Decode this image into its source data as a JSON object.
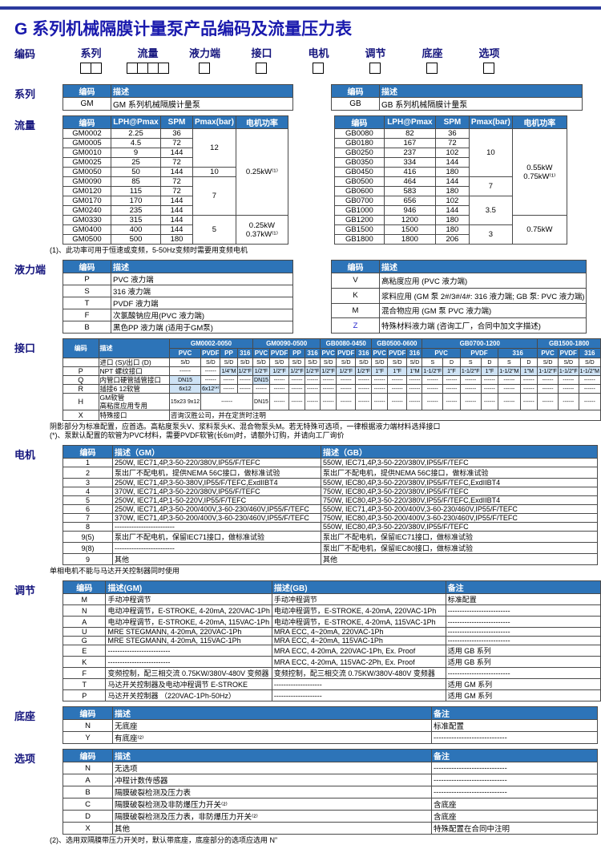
{
  "page": {
    "title": "G 系列机械隔膜计量泵产品编码及流量压力表"
  },
  "coding": {
    "label": "编码",
    "fields": [
      {
        "label": "系列",
        "boxes": 2
      },
      {
        "label": "流量",
        "boxes": 4
      },
      {
        "label": "液力端",
        "boxes": 1
      },
      {
        "label": "接口",
        "boxes": 1
      },
      {
        "label": "电机",
        "boxes": 1
      },
      {
        "label": "调节",
        "boxes": 1
      },
      {
        "label": "底座",
        "boxes": 1
      },
      {
        "label": "选项",
        "boxes": 1
      }
    ]
  },
  "series": {
    "label": "系列",
    "headers": [
      "编码",
      "描述"
    ],
    "left_rows": [
      [
        "GM",
        "GM 系列机械隔膜计量泵"
      ]
    ],
    "right_rows": [
      [
        "GB",
        "GB 系列机械隔膜计量泵"
      ]
    ]
  },
  "flow": {
    "label": "流量",
    "headers": [
      "编码",
      "LPH@Pmax",
      "SPM",
      "Pmax(bar)",
      "电机功率"
    ],
    "gm": {
      "rows": [
        [
          "GM0002",
          "2.25",
          "36"
        ],
        [
          "GM0005",
          "4.5",
          "72"
        ],
        [
          "GM0010",
          "9",
          "144"
        ],
        [
          "GM0025",
          "25",
          "72"
        ],
        [
          "GM0050",
          "50",
          "144"
        ],
        [
          "GM0090",
          "85",
          "72"
        ],
        [
          "GM0120",
          "115",
          "72"
        ],
        [
          "GM0170",
          "170",
          "144"
        ],
        [
          "GM0240",
          "235",
          "144"
        ],
        [
          "GM0330",
          "315",
          "144"
        ],
        [
          "GM0400",
          "400",
          "144"
        ],
        [
          "GM0500",
          "500",
          "180"
        ]
      ],
      "pmax": [
        {
          "value": "12",
          "span": 4
        },
        {
          "value": "10",
          "span": 1
        },
        {
          "value": "7",
          "span": 4
        },
        {
          "value": "5",
          "span": 3
        }
      ],
      "power": [
        {
          "value": "0.25kW⁽¹⁾",
          "span": 9
        },
        {
          "value": "0.25kW\n0.37kW⁽¹⁾",
          "span": 3
        }
      ]
    },
    "gb": {
      "rows": [
        [
          "GB0080",
          "82",
          "36"
        ],
        [
          "GB0180",
          "167",
          "72"
        ],
        [
          "GB0250",
          "237",
          "102"
        ],
        [
          "GB0350",
          "334",
          "144"
        ],
        [
          "GB0450",
          "416",
          "180"
        ],
        [
          "GB0500",
          "464",
          "144"
        ],
        [
          "GB0600",
          "583",
          "180"
        ],
        [
          "GB0700",
          "656",
          "102"
        ],
        [
          "GB1000",
          "946",
          "144"
        ],
        [
          "GB1200",
          "1200",
          "180"
        ],
        [
          "GB1500",
          "1500",
          "180"
        ],
        [
          "GB1800",
          "1800",
          "206"
        ]
      ],
      "pmax": [
        {
          "value": "10",
          "span": 5
        },
        {
          "value": "7",
          "span": 2
        },
        {
          "value": "3.5",
          "span": 3
        },
        {
          "value": "3",
          "span": 2
        }
      ],
      "power": [
        {
          "value": "0.55kW\n0.75kW⁽¹⁾",
          "span": 9
        },
        {
          "value": "0.75kW",
          "span": 3
        }
      ]
    },
    "note": "(1)、此功率可用于恒速或变频，5-50Hz变频时需要用变频电机"
  },
  "hydraulic": {
    "label": "液力端",
    "headers": [
      "编码",
      "描述"
    ],
    "left_rows": [
      [
        "P",
        "PVC 液力端"
      ],
      [
        "S",
        "316 液力端"
      ],
      [
        "T",
        "PVDF 液力端"
      ],
      [
        "F",
        "次氯酸钠应用(PVC 液力端)"
      ],
      [
        "B",
        "黑色PP 液力端 (适用于GM泵)"
      ]
    ],
    "right_rows": [
      [
        "V",
        "高粘度应用 (PVC 液力端)"
      ],
      [
        "K",
        "浆料应用 (GM 泵 2#/3#/4#: 316 液力端; GB 泵: PVC 液力端)"
      ],
      [
        "M",
        "混合物应用 (GM 泵 PVC 液力端)"
      ],
      [
        "Z",
        "特殊材料液力端 (咨询工厂，合同中加文字描述)"
      ]
    ],
    "blue_codes": [
      "Z"
    ]
  },
  "interface": {
    "label": "接口",
    "header": {
      "code": "编码",
      "desc": "描述"
    },
    "groups": [
      {
        "name": "GM0002-0050",
        "materials": [
          "PVC",
          "PVDF",
          "PP",
          "316"
        ],
        "split": false
      },
      {
        "name": "GM0090-0500",
        "materials": [
          "PVC",
          "PVDF",
          "PP",
          "316"
        ],
        "split": false
      },
      {
        "name": "GB0080-0450",
        "materials": [
          "PVC",
          "PVDF",
          "316"
        ],
        "split": false
      },
      {
        "name": "GB0500-0600",
        "materials": [
          "PVC",
          "PVDF",
          "316"
        ],
        "split": false
      },
      {
        "name": "GB0700-1200",
        "materials": [
          "PVC",
          "PVDF",
          "316"
        ],
        "split": true
      },
      {
        "name": "GB1500-1800",
        "materials": [
          "PVC",
          "PVDF",
          "316"
        ],
        "split": false
      }
    ],
    "sd_label": "进口 (S)/出口 (D)",
    "sd_values": [
      "S/D",
      "S/D",
      "S/D",
      "S/D",
      "S/D",
      "S/D",
      "S/D",
      "S/D",
      "S/D",
      "S/D",
      "S/D",
      "S/D",
      "S/D",
      "S/D",
      "S",
      "D",
      "S",
      "D",
      "S",
      "D",
      "S/D",
      "S/D",
      "S/D"
    ],
    "rows": [
      {
        "code": "P",
        "desc": "NPT 螺纹接口",
        "cells": [
          {
            "t": "------"
          },
          {
            "t": "------"
          },
          {
            "t": "1/4\"M",
            "hl": true
          },
          {
            "t": "1/2\"F",
            "hl": true
          },
          {
            "t": "1/2\"F",
            "hl": true
          },
          {
            "t": "1/2\"F",
            "hl": true
          },
          {
            "t": "1/2\"F",
            "hl": true
          },
          {
            "t": "1/2\"F",
            "hl": true
          },
          {
            "t": "1/2\"F",
            "hl": true
          },
          {
            "t": "1/2\"F",
            "hl": true
          },
          {
            "t": "1/2\"F",
            "hl": true
          },
          {
            "t": "1\"F",
            "hl": true
          },
          {
            "t": "1\"F",
            "hl": true
          },
          {
            "t": "1\"M",
            "hl": true
          },
          {
            "t": "1-1/2\"F",
            "hl": true
          },
          {
            "t": "1\"F",
            "hl": true
          },
          {
            "t": "1-1/2\"F",
            "hl": true
          },
          {
            "t": "1\"F",
            "hl": true
          },
          {
            "t": "1-1/2\"M",
            "hl": true
          },
          {
            "t": "1\"M",
            "hl": true
          },
          {
            "t": "1-1/2\"F",
            "hl": true
          },
          {
            "t": "1-1/2\"F",
            "hl": true
          },
          {
            "t": "1-1/2\"M",
            "hl": true
          }
        ]
      },
      {
        "code": "Q",
        "desc": "内管口硬管插管接口",
        "cells": [
          {
            "t": "DN15",
            "hl": true
          },
          {
            "t": "------",
            "repeat": 3
          },
          {
            "t": "DN15",
            "hl": true
          },
          {
            "t": "------",
            "repeat": 18
          }
        ]
      },
      {
        "code": "R",
        "desc": "插接6  12软管",
        "cells": [
          {
            "t": "6x12",
            "hl": true
          },
          {
            "t": "6x12⁽*⁾",
            "hl": true
          },
          {
            "t": "------",
            "repeat": 21
          }
        ]
      },
      {
        "code": "H",
        "desc": "GM软管\n高粘度应用专用",
        "cells": [
          {
            "t": "15x23\n9x12"
          },
          {
            "t": "------",
            "colspan": 3
          },
          {
            "t": "DN15"
          },
          {
            "t": "------",
            "repeat": 18
          }
        ]
      }
    ],
    "special": {
      "code": "X",
      "desc": "特殊接口",
      "text": "咨询汉胜公司，并在定货时注明"
    },
    "notes": [
      "阴影部分为标准配置，应首选。高粘度泵头V、浆料泵头K、混合物泵头M。若无特殊可选项，一律根据液力端材料选择接口",
      "(*)、泵默认配置的软管为PVC材料，需要PVDF软管(长6m)时，请额外订购，并请向工厂询价"
    ]
  },
  "motor": {
    "label": "电机",
    "headers": [
      "编码",
      "描述（GM）",
      "描述（GB）"
    ],
    "rows": [
      [
        "1",
        "250W, IEC71,4P,3-50-220/380V,IP55/F/TEFC",
        "550W, IEC71,4P,3-50-220/380V,IP55/F/TEFC"
      ],
      [
        "2",
        "泵出厂不配电机，提供NEMA 56C接口，做标准试验",
        "泵出厂不配电机，提供NEMA 56C接口，做标准试验"
      ],
      [
        "3",
        "250W, IEC71,4P,3-50-380V,IP55/F/TEFC,ExdIIBT4",
        "550W, IEC80,4P,3-50-220/380V,IP55/F/TEFC,ExdIIBT4"
      ],
      [
        "4",
        "370W, IEC71,4P,3-50-220/380V,IP55/F/TEFC",
        "750W, IEC80,4P,3-50-220/380V,IP55/F/TEFC"
      ],
      [
        "5",
        "250W, IEC71,4P,1-50-220V,IP55/F/TEFC",
        "750W, IEC80,4P,3-50-220/380V,IP55/F/TEFC,ExdIIBT4"
      ],
      [
        "6",
        "250W, IEC71,4P,3-50-200/400V,3-60-230/460V,IP55/F/TEFC",
        "550W, IEC71,4P,3-50-200/400V,3-60-230/460V,IP55/F/TEFC"
      ],
      [
        "7",
        "370W, IEC71,4P,3-50-200/400V,3-60-230/460V,IP55/F/TEFC",
        "750W, IEC80,4P,3-50-200/400V,3-60-230/460V,IP55/F/TEFC"
      ],
      [
        "8",
        "-------------------------",
        "550W, IEC80,4P,3-50-220/380V,IP55/F/TEFC"
      ],
      [
        "9(5)",
        "泵出厂不配电机，保留IEC71接口，做标准试验",
        "泵出厂不配电机，保留IEC71接口，做标准试验"
      ],
      [
        "9(8)",
        "-------------------------",
        "泵出厂不配电机，保留IEC80接口，做标准试验"
      ],
      [
        "9",
        "其他",
        "其他"
      ]
    ],
    "note": "单相电机不能与马达开关控制器同时使用"
  },
  "adjust": {
    "label": "调节",
    "headers": [
      "编码",
      "描述(GM)",
      "描述(GB)",
      "备注"
    ],
    "rows": [
      [
        "M",
        "手动冲程调节",
        "手动冲程调节",
        "标准配置"
      ],
      [
        "N",
        "电动冲程调节，E-STROKE, 4-20mA, 220VAC-1Ph",
        "电动冲程调节，E-STROKE, 4-20mA, 220VAC-1Ph",
        "--------------------------"
      ],
      [
        "A",
        "电动冲程调节，E-STROKE, 4-20mA, 115VAC-1Ph",
        "电动冲程调节，E-STROKE, 4-20mA, 115VAC-1Ph",
        "--------------------------"
      ],
      [
        "U",
        "MRE STEGMANN, 4-20mA, 220VAC-1Ph",
        "MRA ECC, 4~20mA, 220VAC-1Ph",
        "--------------------------"
      ],
      [
        "G",
        "MRE STEGMANN, 4-20mA, 115VAC-1Ph",
        "MRA ECC, 4~20mA, 115VAC-1Ph",
        "--------------------------"
      ],
      [
        "E",
        "--------------------------",
        "MRA ECC, 4-20mA, 220VAC-1Ph, Ex. Proof",
        "适用 GB 系列"
      ],
      [
        "K",
        "--------------------------",
        "MRA ECC, 4-20mA, 115VAC-2Ph, Ex. Proof",
        "适用 GB 系列"
      ],
      [
        "F",
        "变频控制，配三相交流 0.75KW/380V-480V 变频器",
        "变频控制，配三相交流 0.75KW/380V-480V 变频器",
        "--------------------------"
      ],
      [
        "T",
        "马达开关控制器及电动冲程调节 E-STROKE",
        "--------------------",
        "适用 GM 系列"
      ],
      [
        "P",
        "马达开关控制器 （220VAC-1Ph-50Hz）",
        "--------------------",
        "适用 GM 系列"
      ]
    ]
  },
  "base": {
    "label": "底座",
    "headers": [
      "编码",
      "描述",
      "备注"
    ],
    "rows": [
      [
        "N",
        "无底座",
        "标准配置"
      ],
      [
        "Y",
        "有底座⁽²⁾",
        "-----------------------------"
      ]
    ]
  },
  "options": {
    "label": "选项",
    "headers": [
      "编码",
      "描述",
      "备注"
    ],
    "rows": [
      [
        "N",
        "无选项",
        "-----------------------------"
      ],
      [
        "A",
        "冲程计数传感器",
        "-----------------------------"
      ],
      [
        "B",
        "隔膜破裂检测及压力表",
        "-----------------------------"
      ],
      [
        "C",
        "隔膜破裂检测及非防爆压力开关⁽²⁾",
        "含底座"
      ],
      [
        "D",
        "隔膜破裂检测及压力表，非防爆压力开关⁽²⁾",
        "含底座"
      ],
      [
        "X",
        "其他",
        "特殊配置在合同中注明"
      ]
    ],
    "note": "(2)、选用双隔膜带压力开关时，默认带底座，底座部分的选项应选用 N”"
  }
}
